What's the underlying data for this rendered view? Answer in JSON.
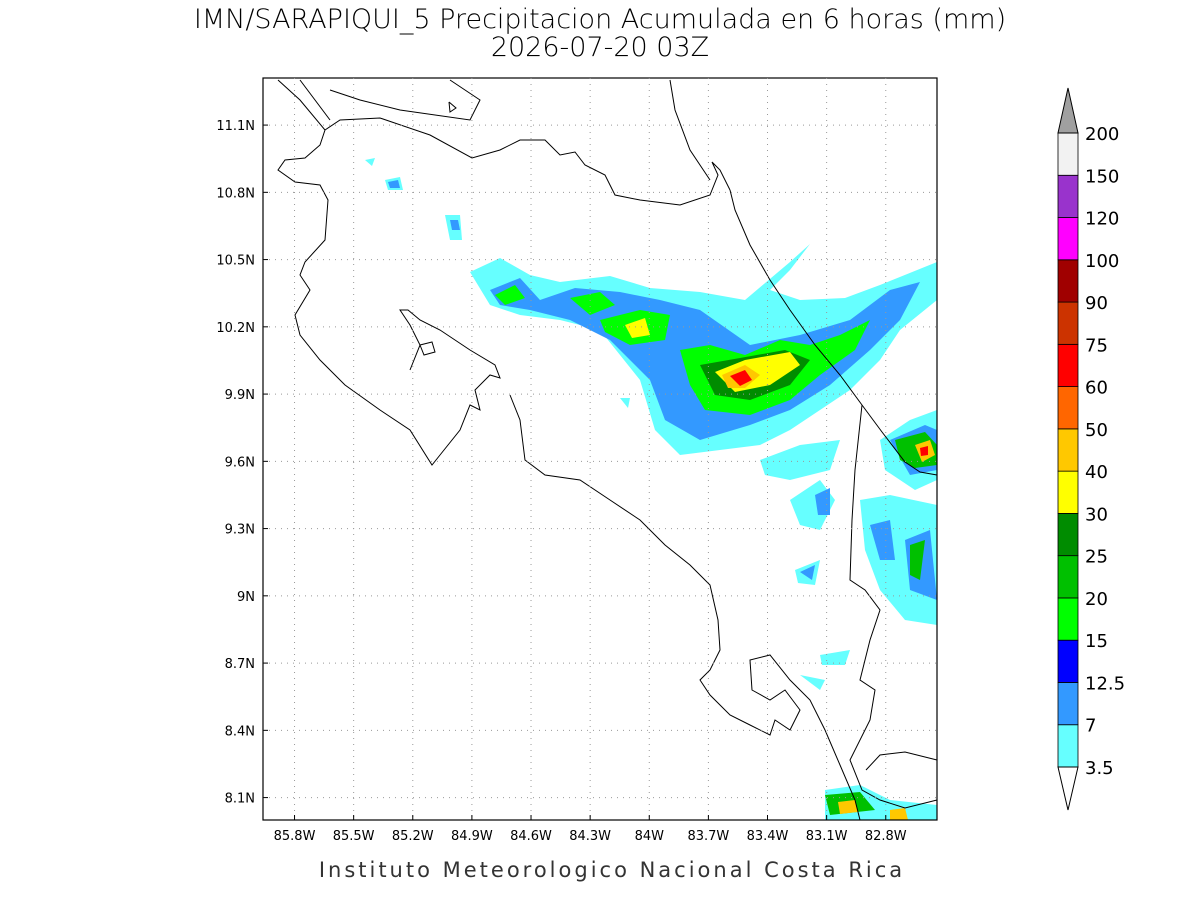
{
  "title": "IMN/SARAPIQUI_5 Precipitacion Acumulada en 6 horas (mm)",
  "subtitle": "2026-07-20 03Z",
  "footer": "Instituto Meteorologico Nacional Costa Rica",
  "map": {
    "xlim": [
      -85.96,
      -82.54
    ],
    "ylim": [
      8.0,
      11.31
    ],
    "grid": true,
    "xticks": [
      {
        "value": -85.8,
        "label": "85.8W"
      },
      {
        "value": -85.5,
        "label": "85.5W"
      },
      {
        "value": -85.2,
        "label": "85.2W"
      },
      {
        "value": -84.9,
        "label": "84.9W"
      },
      {
        "value": -84.6,
        "label": "84.6W"
      },
      {
        "value": -84.3,
        "label": "84.3W"
      },
      {
        "value": -84.0,
        "label": "84W"
      },
      {
        "value": -83.7,
        "label": "83.7W"
      },
      {
        "value": -83.4,
        "label": "83.4W"
      },
      {
        "value": -83.1,
        "label": "83.1W"
      },
      {
        "value": -82.8,
        "label": "82.8W"
      }
    ],
    "yticks": [
      {
        "value": 8.1,
        "label": "8.1N"
      },
      {
        "value": 8.4,
        "label": "8.4N"
      },
      {
        "value": 8.7,
        "label": "8.7N"
      },
      {
        "value": 9.0,
        "label": "9N"
      },
      {
        "value": 9.3,
        "label": "9.3N"
      },
      {
        "value": 9.6,
        "label": "9.6N"
      },
      {
        "value": 9.9,
        "label": "9.9N"
      },
      {
        "value": 10.2,
        "label": "10.2N"
      },
      {
        "value": 10.5,
        "label": "10.5N"
      },
      {
        "value": 10.8,
        "label": "10.8N"
      },
      {
        "value": 11.1,
        "label": "11.1N"
      }
    ]
  },
  "colorbar": {
    "levels": [
      3.5,
      7,
      12.5,
      15,
      20,
      25,
      30,
      40,
      50,
      60,
      75,
      90,
      100,
      120,
      150,
      200
    ],
    "colors": [
      "#66ffff",
      "#3399ff",
      "#0000ff",
      "#00ff00",
      "#00c000",
      "#008c00",
      "#ffff00",
      "#ffc800",
      "#ff6600",
      "#ff0000",
      "#cc3300",
      "#a00000",
      "#ff00ff",
      "#9933cc",
      "#f2f2f2"
    ],
    "under_color": "#ffffff",
    "over_color": "#a0a0a0"
  }
}
